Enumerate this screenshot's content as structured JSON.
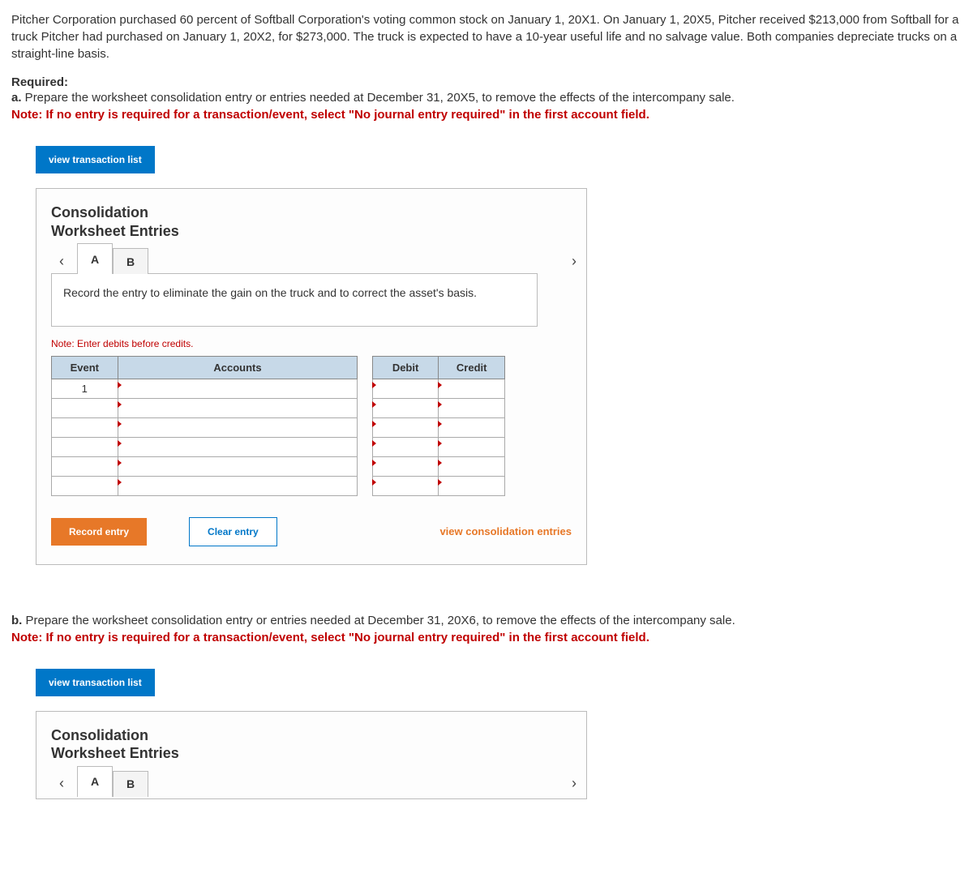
{
  "problem_intro": "Pitcher Corporation purchased 60 percent of Softball Corporation's voting common stock on January 1, 20X1. On January 1, 20X5, Pitcher received $213,000 from Softball for a truck Pitcher had purchased on January 1, 20X2, for $273,000. The truck is expected to have a 10-year useful life and no salvage value. Both companies depreciate trucks on a straight-line basis.",
  "required_label": "Required:",
  "part_a": {
    "letter": "a.",
    "text": " Prepare the worksheet consolidation entry or entries needed at December 31, 20X5, to remove the effects of the intercompany sale."
  },
  "note_line": "Note: If no entry is required for a transaction/event, select \"No journal entry required\" in the first account field.",
  "buttons": {
    "view_transaction_list": "view transaction list",
    "record_entry": "Record entry",
    "clear_entry": "Clear entry",
    "view_consolidation_entries": "view consolidation entries"
  },
  "card": {
    "heading_line1": "Consolidation",
    "heading_line2": "Worksheet Entries",
    "tabs": [
      "A",
      "B"
    ],
    "instruction": "Record the entry to eliminate the gain on the truck and to correct the asset's basis.",
    "small_note": "Note: Enter debits before credits.",
    "headers": {
      "event": "Event",
      "accounts": "Accounts",
      "debit": "Debit",
      "credit": "Credit"
    },
    "first_event": "1",
    "num_rows": 6
  },
  "part_b": {
    "letter": "b.",
    "text": " Prepare the worksheet consolidation entry or entries needed at December 31, 20X6, to remove the effects of the intercompany sale."
  },
  "colors": {
    "blue": "#0077c8",
    "orange": "#e77828",
    "header_bg": "#c7d9e8",
    "red": "#c00000"
  }
}
